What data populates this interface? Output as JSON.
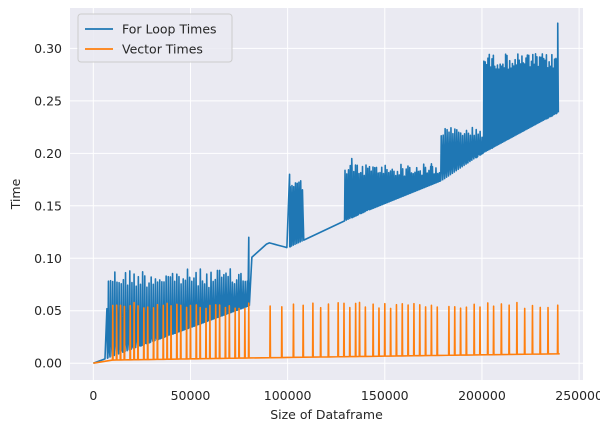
{
  "chart_data": {
    "type": "line",
    "title": "",
    "xlabel": "Size of Dataframe",
    "ylabel": "Time",
    "xlim": [
      -12000,
      252000
    ],
    "ylim": [
      -0.016,
      0.3385
    ],
    "grid": true,
    "legend_position": "top-left",
    "plot_background": "#eaeaf2",
    "grid_color": "#ffffff",
    "x_ticks": [
      {
        "value": 0,
        "label": "0"
      },
      {
        "value": 50000,
        "label": "50000"
      },
      {
        "value": 100000,
        "label": "100000"
      },
      {
        "value": 150000,
        "label": "150000"
      },
      {
        "value": 200000,
        "label": "200000"
      },
      {
        "value": 250000,
        "label": "250000"
      }
    ],
    "y_ticks": [
      {
        "value": 0.0,
        "label": "0.00"
      },
      {
        "value": 0.05,
        "label": "0.05"
      },
      {
        "value": 0.1,
        "label": "0.10"
      },
      {
        "value": 0.15,
        "label": "0.15"
      },
      {
        "value": 0.2,
        "label": "0.20"
      },
      {
        "value": 0.25,
        "label": "0.25"
      },
      {
        "value": 0.3,
        "label": "0.30"
      }
    ],
    "series": [
      {
        "name": "For Loop Times",
        "color": "#1f77b4",
        "baseline": [
          [
            0,
            0.0
          ],
          [
            80000,
            0.055
          ],
          [
            81000,
            0.1
          ],
          [
            90000,
            0.115
          ],
          [
            100000,
            0.11
          ],
          [
            140000,
            0.145
          ],
          [
            180000,
            0.175
          ],
          [
            200000,
            0.2
          ],
          [
            240000,
            0.24
          ]
        ],
        "segments": [
          {
            "start": 7000,
            "end": 80000,
            "step": 1100,
            "spike_low": 0.01,
            "spike_high": 0.09,
            "jitter": 0.018
          },
          {
            "start": 100000,
            "end": 108000,
            "step": 900,
            "spike_low": 0.14,
            "spike_high": 0.175,
            "jitter": 0.01
          },
          {
            "start": 128000,
            "end": 178000,
            "step": 900,
            "spike_low": 0.135,
            "spike_high": 0.19,
            "jitter": 0.012
          },
          {
            "start": 178000,
            "end": 200000,
            "step": 1000,
            "spike_low": 0.19,
            "spike_high": 0.225,
            "jitter": 0.01
          },
          {
            "start": 200000,
            "end": 239000,
            "step": 700,
            "spike_low": 0.23,
            "spike_high": 0.295,
            "jitter": 0.015
          }
        ],
        "peaks": [
          [
            7000,
            0.052
          ],
          [
            80000,
            0.12
          ],
          [
            101000,
            0.18
          ],
          [
            133000,
            0.195
          ],
          [
            174000,
            0.19
          ],
          [
            205000,
            0.255
          ],
          [
            239000,
            0.324
          ]
        ]
      },
      {
        "name": "Vector Times",
        "color": "#ff7f0e",
        "baseline": [
          [
            0,
            0.0
          ],
          [
            10000,
            0.003
          ],
          [
            80000,
            0.005
          ],
          [
            240000,
            0.009
          ]
        ],
        "spike_height": 0.058,
        "spike_jitter": 0.006,
        "spike_x": [
          10000,
          12000,
          14000,
          16000,
          19000,
          21000,
          23000,
          26000,
          28000,
          31000,
          33000,
          36000,
          38000,
          40000,
          43000,
          45000,
          48000,
          50000,
          53000,
          55000,
          58000,
          60000,
          63000,
          65000,
          68000,
          70000,
          73000,
          75000,
          78000,
          80000,
          91000,
          97000,
          103000,
          108000,
          113000,
          117000,
          121000,
          126000,
          129000,
          132000,
          135000,
          137000,
          140000,
          144000,
          147000,
          150000,
          153000,
          156000,
          159000,
          162000,
          165000,
          168000,
          171000,
          174000,
          177000,
          183000,
          186000,
          189000,
          192000,
          196000,
          199000,
          203000,
          206000,
          210000,
          214000,
          218000,
          222000,
          226000,
          230000,
          234000,
          239000
        ]
      }
    ]
  }
}
